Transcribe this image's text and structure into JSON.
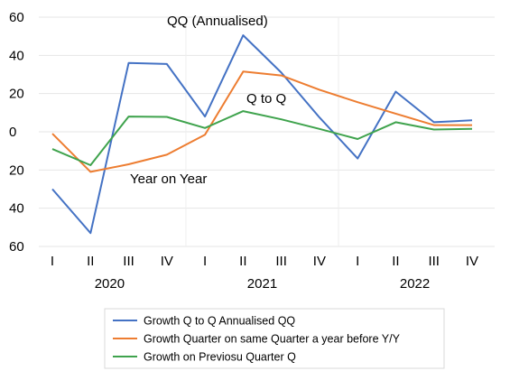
{
  "chart_data": {
    "type": "line",
    "categories": [
      "I",
      "II",
      "III",
      "IV",
      "I",
      "II",
      "III",
      "IV",
      "I",
      "II",
      "III",
      "IV"
    ],
    "years": [
      "2020",
      "2021",
      "2022"
    ],
    "y_tick_labels": [
      "60",
      "40",
      "20",
      "0",
      "20",
      "40",
      "60"
    ],
    "y_tick_values": [
      60,
      40,
      20,
      0,
      -20,
      -40,
      -60
    ],
    "ylim": [
      -60,
      60
    ],
    "grid": "horizontal",
    "annotations": [
      {
        "text": "QQ (Annualised)"
      },
      {
        "text": "Q to Q"
      },
      {
        "text": "Year on Year"
      }
    ],
    "legend_position": "bottom",
    "series": [
      {
        "name": "Growth Q to Q Annualised QQ",
        "color": "#4472C4",
        "values": [
          -30,
          -53,
          36,
          35.5,
          8,
          50.5,
          31,
          7.5,
          -14,
          21,
          5,
          6
        ]
      },
      {
        "name": "Growth Quarter on same Quarter a year before Y/Y",
        "color": "#ED7D31",
        "values": [
          -1,
          -21,
          -17,
          -12,
          -1.5,
          31.5,
          29.5,
          22,
          15.5,
          9.5,
          3.5,
          3.5
        ]
      },
      {
        "name": "Growth on Previosu Quarter Q",
        "color": "#3FA34D",
        "values": [
          -9,
          -17.5,
          8,
          7.8,
          2,
          10.8,
          6.5,
          1.5,
          -3.8,
          5,
          1.2,
          1.5
        ]
      }
    ]
  }
}
